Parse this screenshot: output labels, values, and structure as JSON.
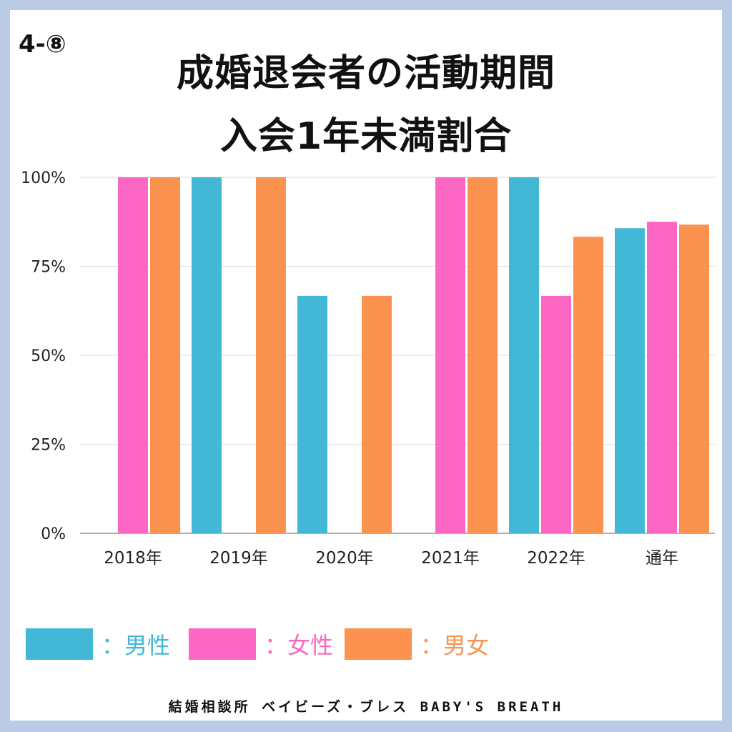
{
  "header": {
    "tag": "4-⑧",
    "title_line1": "成婚退会者の活動期間",
    "title_line2": "入会1年未満割合"
  },
  "chart_data": {
    "type": "bar",
    "categories": [
      "2018年",
      "2019年",
      "2020年",
      "2021年",
      "2022年",
      "通年"
    ],
    "series": [
      {
        "name": "男性",
        "color": "#42b8d6",
        "values": [
          0,
          100,
          66.7,
          0,
          100,
          85.7
        ]
      },
      {
        "name": "女性",
        "color": "#fb67c2",
        "values": [
          100,
          0,
          0,
          100,
          66.7,
          87.5
        ]
      },
      {
        "name": "男女",
        "color": "#fb924f",
        "values": [
          100,
          100,
          66.7,
          100,
          83.3,
          86.7
        ]
      }
    ],
    "yticks": [
      "0%",
      "25%",
      "50%",
      "75%",
      "100%"
    ],
    "ylim": [
      0,
      100
    ],
    "grid": true,
    "legend_position": "bottom"
  },
  "legend": [
    {
      "label": "：男性",
      "color": "#42b8d6",
      "text_color": "#42b8d6"
    },
    {
      "label": "：女性",
      "color": "#fb67c2",
      "text_color": "#fb67c2"
    },
    {
      "label": "：男女",
      "color": "#fb924f",
      "text_color": "#fb924f"
    }
  ],
  "footer": "結婚相談所 ベイビーズ・ブレス BABY'S BREATH"
}
